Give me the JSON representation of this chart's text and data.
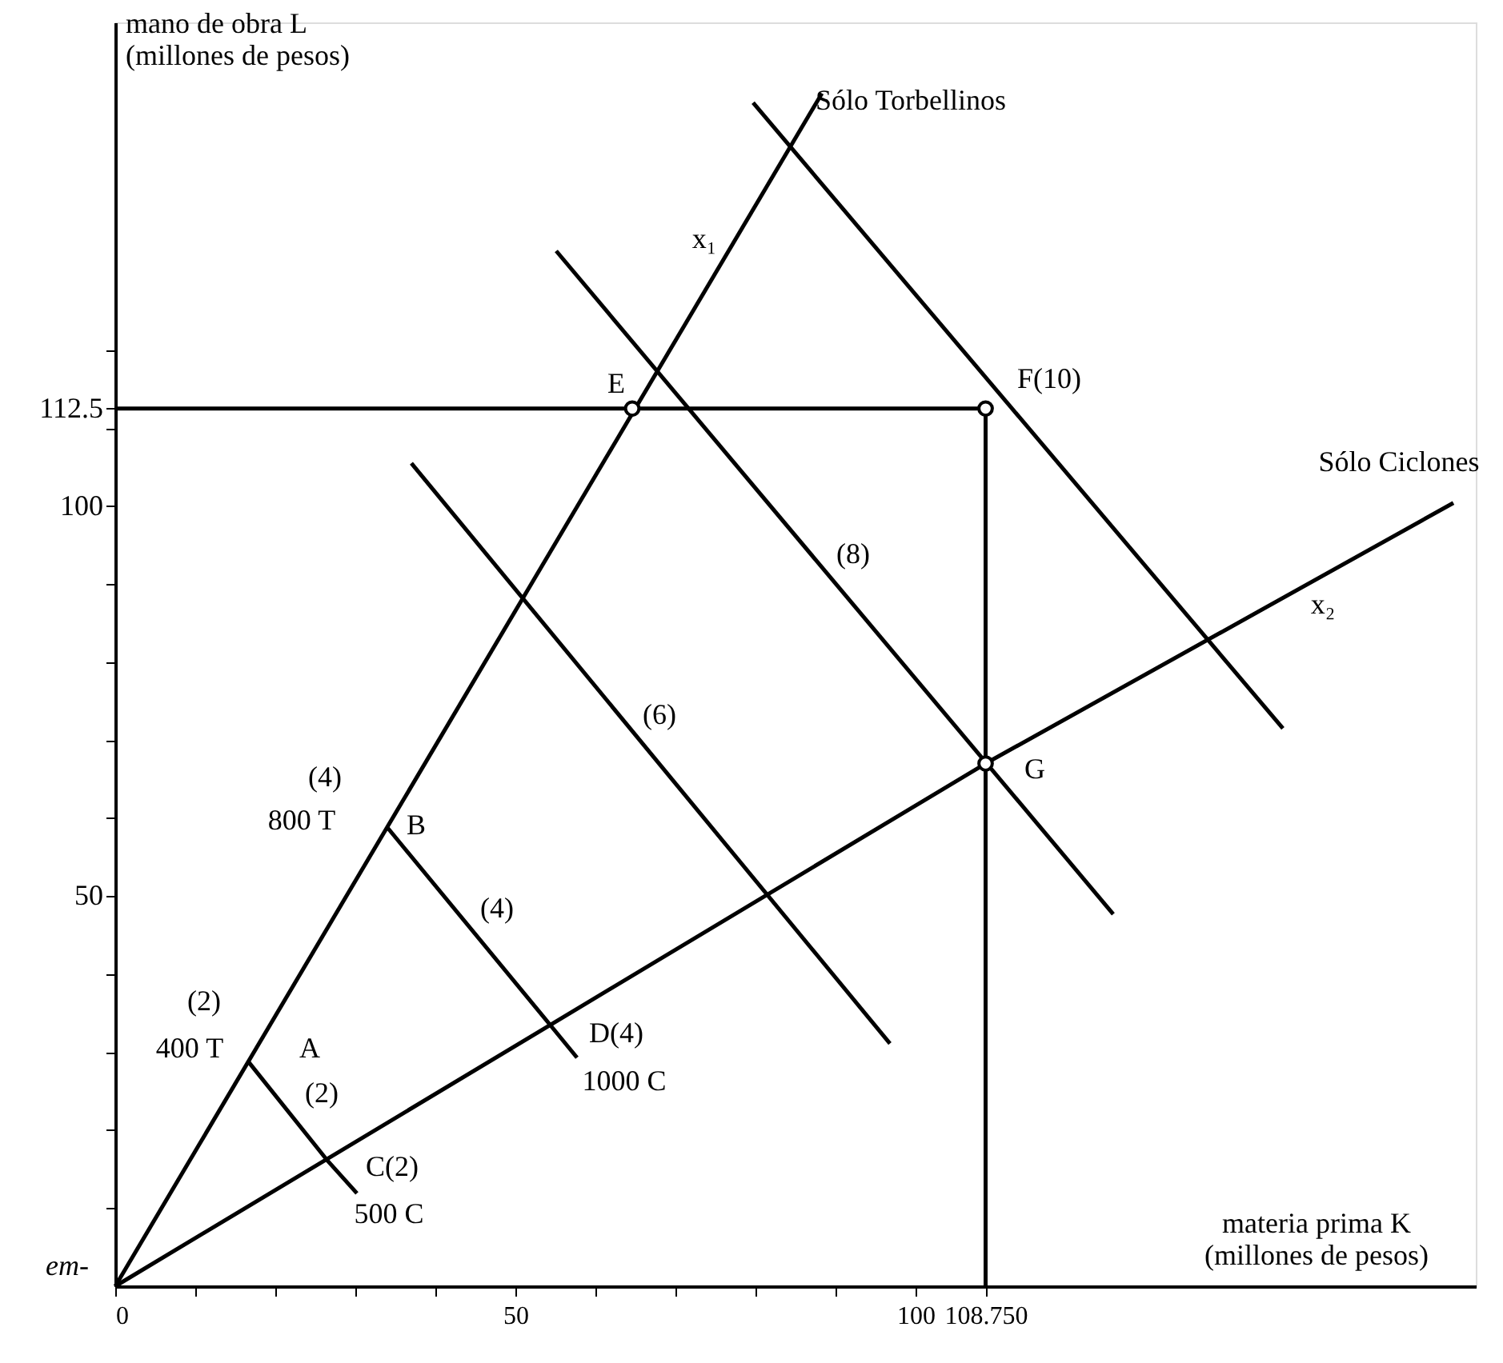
{
  "chart_data": {
    "type": "line",
    "xlabel": "materia prima K\n(millones de pesos)",
    "ylabel": "mano de obra L\n(millones de pesos)",
    "xlim": [
      0,
      170
    ],
    "ylim": [
      0,
      162
    ],
    "xticks": [
      0,
      {
        "value": 10,
        "label": null
      },
      {
        "value": 20,
        "label": null
      },
      {
        "value": 30,
        "label": null
      },
      {
        "value": 40,
        "label": null
      },
      50,
      {
        "value": 60,
        "label": null
      },
      {
        "value": 70,
        "label": null
      },
      {
        "value": 80,
        "label": null
      },
      {
        "value": 90,
        "label": null
      },
      100,
      {
        "value": 108.75,
        "label": "108.750"
      }
    ],
    "yticks": [
      {
        "value": 10,
        "label": null
      },
      {
        "value": 20,
        "label": null
      },
      {
        "value": 30,
        "label": null
      },
      {
        "value": 40,
        "label": null
      },
      50,
      {
        "value": 60,
        "label": null
      },
      {
        "value": 70,
        "label": null
      },
      {
        "value": 80,
        "label": null
      },
      {
        "value": 90,
        "label": null
      },
      100,
      {
        "value": 110,
        "label": null
      },
      112.5,
      {
        "value": 120,
        "label": null
      }
    ],
    "grid": false,
    "line_style": "solid",
    "series": [
      {
        "color": "#000000",
        "x": [
          0,
          88.3
        ],
        "values": [
          0,
          152.9
        ]
      },
      {
        "color": "#000000",
        "x": [
          0,
          108.75,
          167.2
        ],
        "values": [
          0,
          67,
          100.4
        ]
      },
      {
        "color": "#000000",
        "x": [
          16.7,
          26.6,
          30.2
        ],
        "values": [
          28.7,
          16.0,
          11.9
        ]
      },
      {
        "color": "#000000",
        "x": [
          34.0,
          54.5,
          57.7
        ],
        "values": [
          58.8,
          33.3,
          29.3
        ]
      },
      {
        "color": "#000000",
        "x": [
          37.0,
          96.8
        ],
        "values": [
          105.5,
          31.1
        ]
      },
      {
        "color": "#000000",
        "x": [
          55.1,
          124.7
        ],
        "values": [
          132.7,
          47.7
        ]
      },
      {
        "color": "#000000",
        "x": [
          79.7,
          145.9
        ],
        "values": [
          151.7,
          71.5
        ]
      },
      {
        "color": "#000000",
        "x": [
          0,
          108.75
        ],
        "values": [
          112.5,
          112.5
        ]
      },
      {
        "color": "#000000",
        "x": [
          108.75,
          108.75
        ],
        "values": [
          0,
          112.5
        ]
      },
      {
        "type": "scatter",
        "color": "#000000",
        "marker": "circle",
        "x": [
          64.6,
          108.75,
          108.75
        ],
        "values": [
          112.5,
          112.5,
          67
        ]
      }
    ],
    "annotations": [
      "E",
      "F(10)",
      "G",
      "A",
      "(2)",
      "400 T",
      "(2)",
      "C(2)",
      "500 C",
      "(4)",
      "800 T",
      "B",
      "(4)",
      "D(4)",
      "1000 C",
      "(6)",
      "(8)",
      "x₁",
      "x₂",
      "Sólo Torbellinos",
      "Sólo Ciclones",
      "em-"
    ]
  }
}
